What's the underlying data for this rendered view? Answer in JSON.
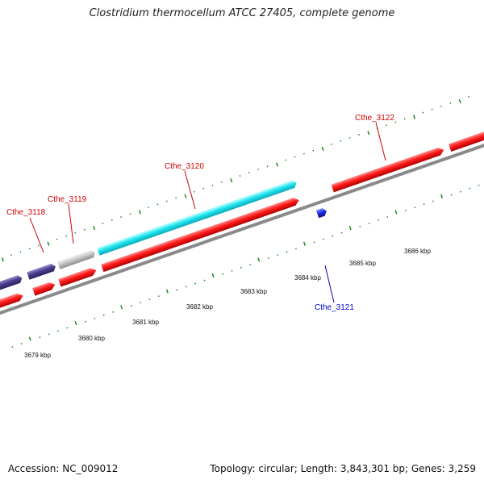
{
  "title": "Clostridium thermocellum ATCC 27405, complete genome",
  "footer": {
    "accession": "Accession: NC_009012",
    "topology": "Topology: circular; Length: 3,843,301 bp; Genes: 3,259"
  },
  "colors": {
    "red_gene": "#ff1a1a",
    "cyan_gene": "#22e6f0",
    "purple_gene": "#4a3d8a",
    "gray_gene": "#c8c8c8",
    "blue_gene": "#1a2bd8",
    "gc_dots": "#1f8a1f",
    "label_red": "#cc0000",
    "label_blue": "#0000cc",
    "backbone": "#8a8a8a"
  },
  "gene_labels": [
    {
      "id": "Cthe_3118",
      "text": "Cthe_3118",
      "color": "red"
    },
    {
      "id": "Cthe_3119",
      "text": "Cthe_3119",
      "color": "red"
    },
    {
      "id": "Cthe_3120",
      "text": "Cthe_3120",
      "color": "red"
    },
    {
      "id": "Cthe_3121",
      "text": "Cthe_3121",
      "color": "blue"
    },
    {
      "id": "Cthe_3122",
      "text": "Cthe_3122",
      "color": "red"
    }
  ],
  "scale_labels": [
    "3679 kbp",
    "3680 kbp",
    "3681 kbp",
    "3682 kbp",
    "3683 kbp",
    "3684 kbp",
    "3685 kbp",
    "3686 kbp"
  ]
}
